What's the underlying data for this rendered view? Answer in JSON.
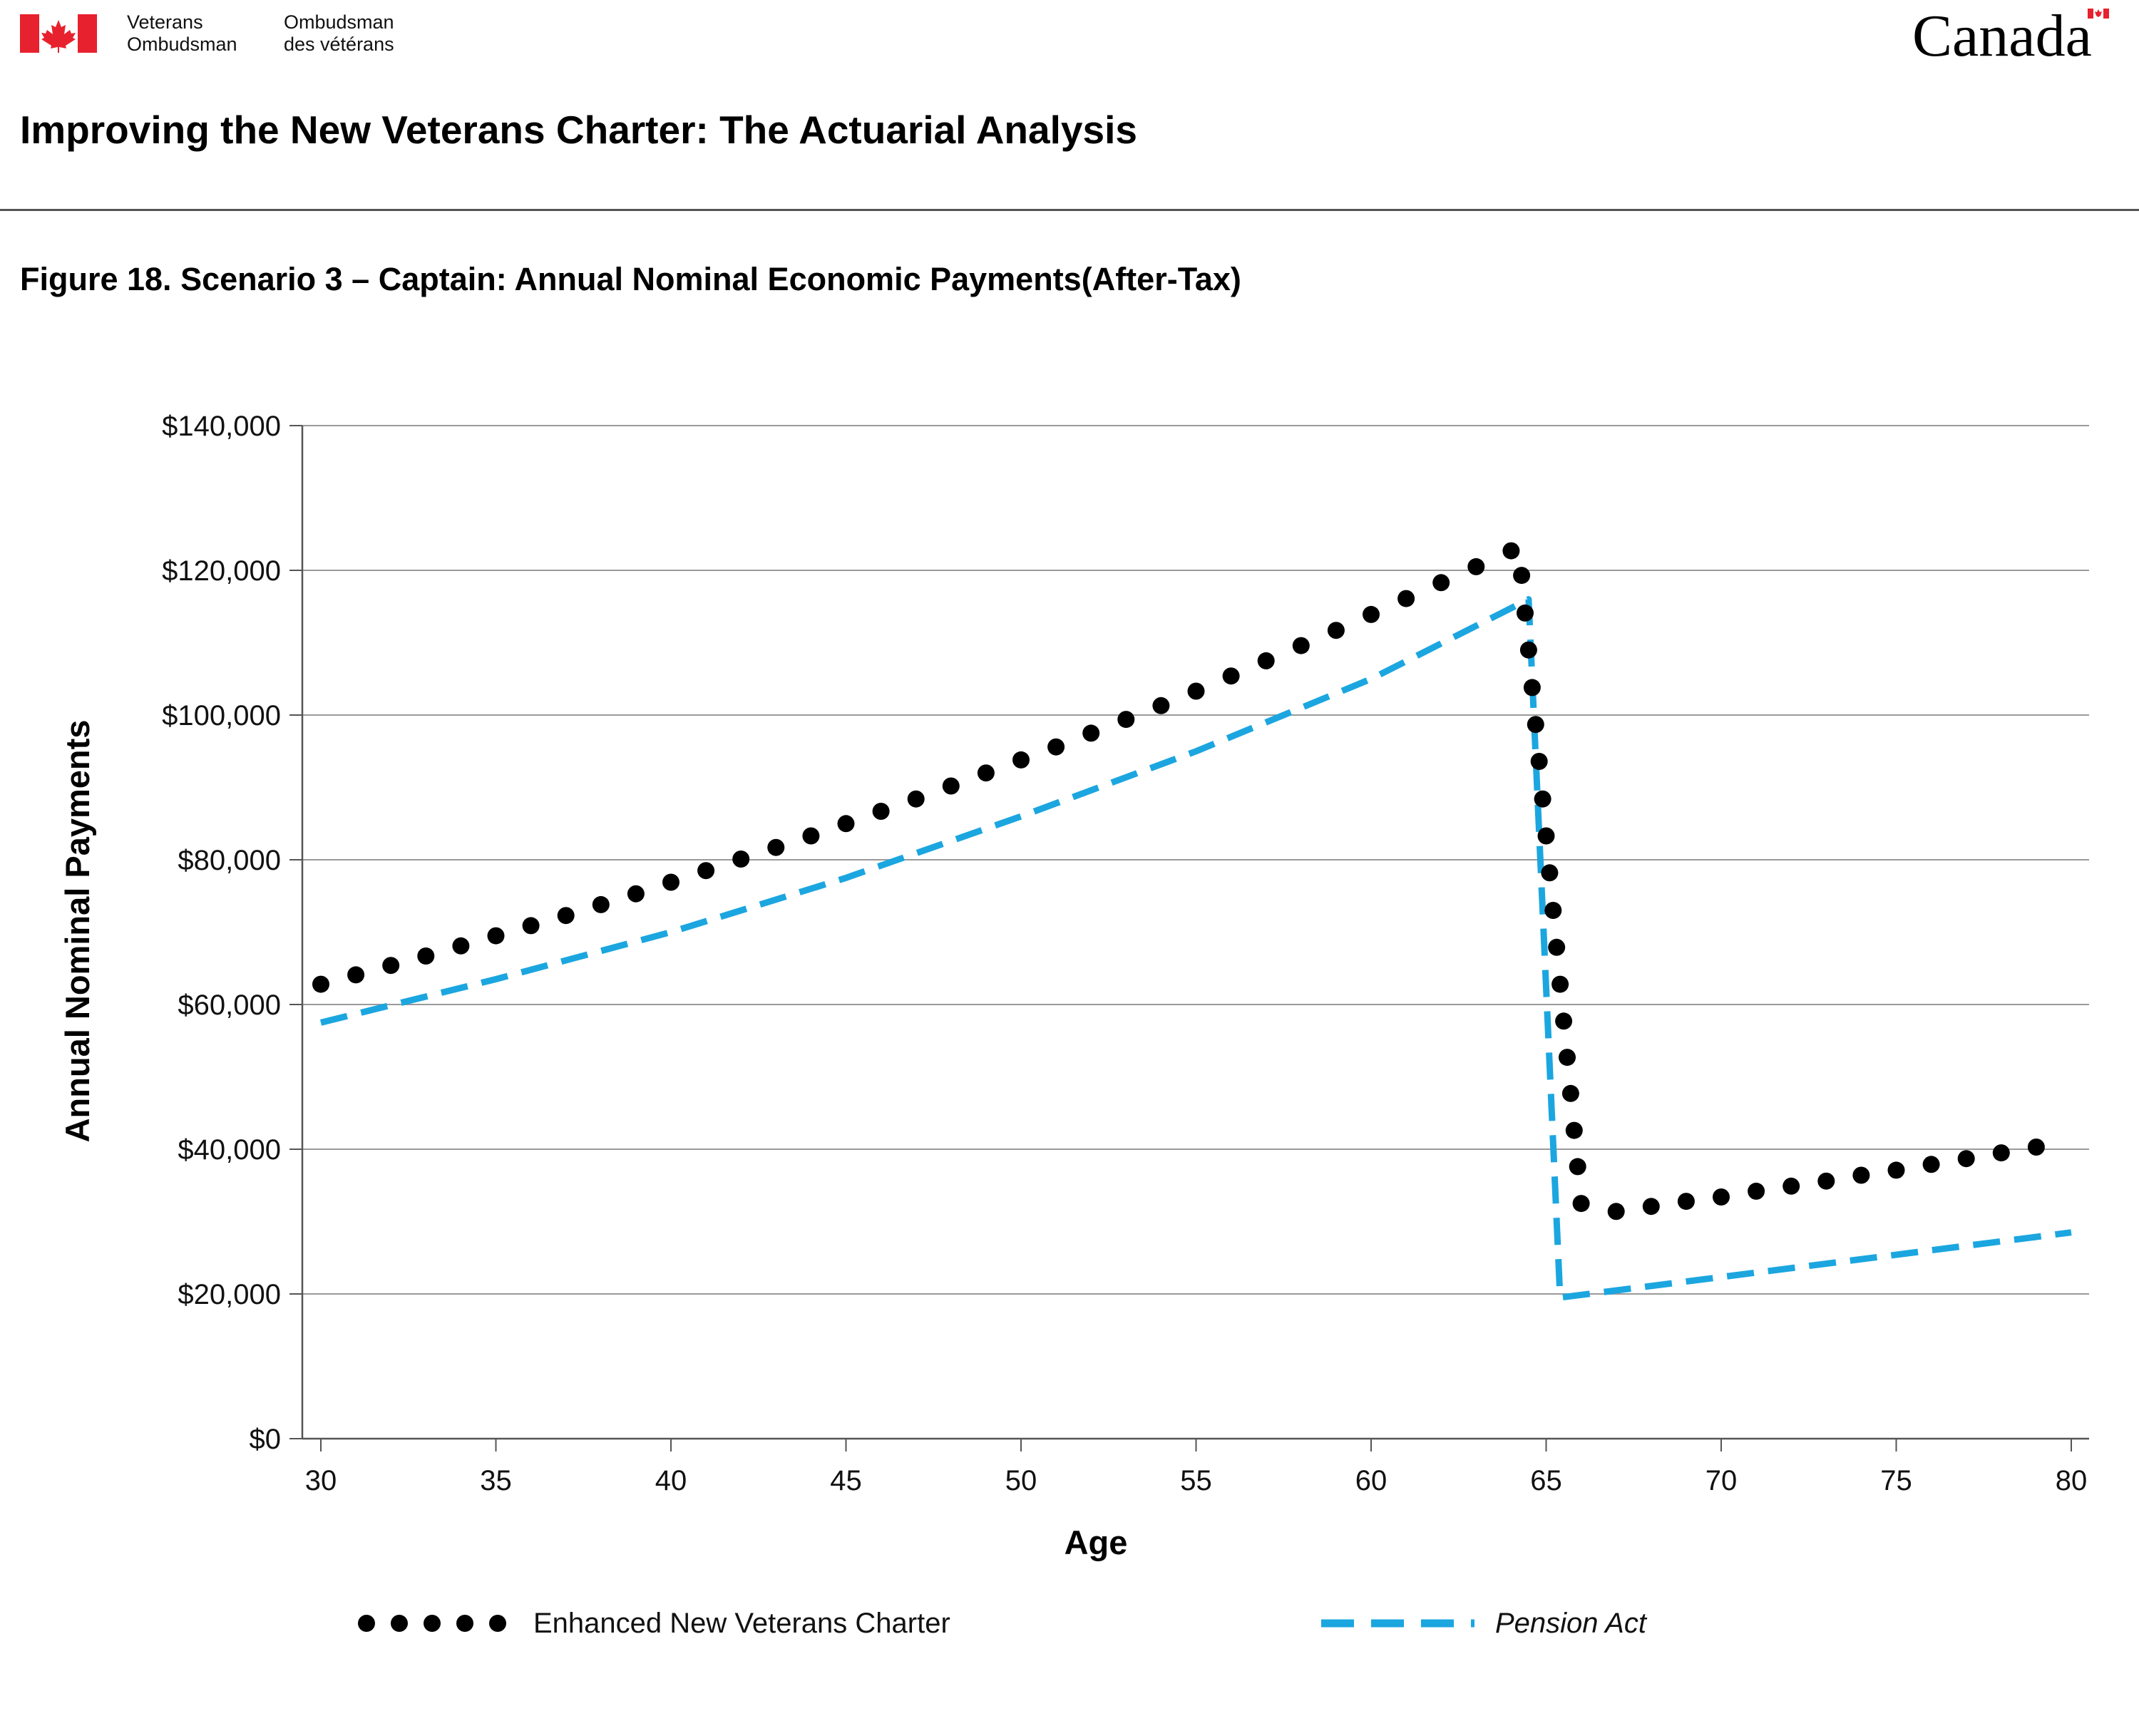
{
  "header": {
    "org_en_line1": "Veterans",
    "org_en_line2": "Ombudsman",
    "org_fr_line1": "Ombudsman",
    "org_fr_line2": "des vétérans",
    "wordmark": "Canada",
    "flag_icon": "canada-flag-icon",
    "flag_color": "#e8212e"
  },
  "document_title": "Improving the New Veterans Charter: The Actuarial Analysis",
  "figure_title": "Figure 18. Scenario 3 – Captain: Annual Nominal Economic Payments(After-Tax)",
  "chart_data": {
    "type": "line",
    "xlabel": "Age",
    "ylabel": "Annual Nominal Payments",
    "xlim": [
      30,
      80
    ],
    "ylim": [
      0,
      140000
    ],
    "x_ticks": [
      30,
      35,
      40,
      45,
      50,
      55,
      60,
      65,
      70,
      75,
      80
    ],
    "y_ticks": [
      0,
      20000,
      40000,
      60000,
      80000,
      100000,
      120000,
      140000
    ],
    "y_tick_labels": [
      "$0",
      "$20,000",
      "$40,000",
      "$60,000",
      "$80,000",
      "$100,000",
      "$120,000",
      "$140,000"
    ],
    "x_tick_labels": [
      "30",
      "35",
      "40",
      "45",
      "50",
      "55",
      "60",
      "65",
      "70",
      "75",
      "80"
    ],
    "grid": "horizontal",
    "legend_position": "bottom",
    "series": [
      {
        "name": "Enhanced New Veterans Charter",
        "style": "dotted",
        "color": "#000000",
        "points": [
          [
            30,
            62800
          ],
          [
            31,
            64100
          ],
          [
            32,
            65400
          ],
          [
            33,
            66700
          ],
          [
            34,
            68100
          ],
          [
            35,
            69500
          ],
          [
            36,
            70900
          ],
          [
            37,
            72300
          ],
          [
            38,
            73800
          ],
          [
            39,
            75300
          ],
          [
            40,
            76900
          ],
          [
            41,
            78500
          ],
          [
            42,
            80100
          ],
          [
            43,
            81700
          ],
          [
            44,
            83300
          ],
          [
            45,
            85000
          ],
          [
            46,
            86700
          ],
          [
            47,
            88400
          ],
          [
            48,
            90200
          ],
          [
            49,
            92000
          ],
          [
            50,
            93800
          ],
          [
            51,
            95600
          ],
          [
            52,
            97500
          ],
          [
            53,
            99400
          ],
          [
            54,
            101300
          ],
          [
            55,
            103300
          ],
          [
            56,
            105400
          ],
          [
            57,
            107500
          ],
          [
            58,
            109600
          ],
          [
            59,
            111700
          ],
          [
            60,
            113900
          ],
          [
            61,
            116100
          ],
          [
            62,
            118300
          ],
          [
            63,
            120500
          ],
          [
            64,
            122700
          ],
          [
            64.3,
            119300
          ],
          [
            64.4,
            114100
          ],
          [
            64.5,
            109000
          ],
          [
            64.6,
            103800
          ],
          [
            64.7,
            98700
          ],
          [
            64.8,
            93600
          ],
          [
            64.9,
            88400
          ],
          [
            65.0,
            83300
          ],
          [
            65.1,
            78200
          ],
          [
            65.2,
            73000
          ],
          [
            65.3,
            67900
          ],
          [
            65.4,
            62800
          ],
          [
            65.5,
            57700
          ],
          [
            65.6,
            52700
          ],
          [
            65.7,
            47700
          ],
          [
            65.8,
            42600
          ],
          [
            65.9,
            37600
          ],
          [
            66,
            32500
          ],
          [
            67,
            31400
          ],
          [
            68,
            32100
          ],
          [
            69,
            32800
          ],
          [
            70,
            33400
          ],
          [
            71,
            34200
          ],
          [
            72,
            34900
          ],
          [
            73,
            35600
          ],
          [
            74,
            36400
          ],
          [
            75,
            37100
          ],
          [
            76,
            37900
          ],
          [
            77,
            38700
          ],
          [
            78,
            39500
          ],
          [
            79,
            40300
          ]
        ]
      },
      {
        "name": "Pension Act",
        "style": "dashed",
        "color": "#1ba6e0",
        "points": [
          [
            30,
            57500
          ],
          [
            35,
            63500
          ],
          [
            40,
            70000
          ],
          [
            45,
            77500
          ],
          [
            50,
            86000
          ],
          [
            55,
            95000
          ],
          [
            60,
            105000
          ],
          [
            64.5,
            116000
          ],
          [
            65.4,
            19500
          ],
          [
            80,
            28500
          ]
        ]
      }
    ]
  }
}
